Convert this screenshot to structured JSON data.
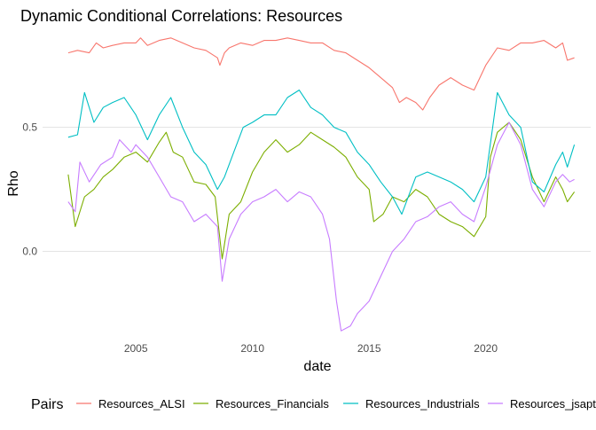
{
  "chart_data": {
    "type": "line",
    "title": "Dynamic Conditional Correlations: Resources",
    "xlabel": "date",
    "ylabel": "Rho",
    "x_ticks": [
      2005,
      2010,
      2015,
      2020
    ],
    "y_ticks": [
      {
        "value": 0.0,
        "label": "0.0"
      },
      {
        "value": 0.5,
        "label": "0.5"
      }
    ],
    "xlim": [
      2001.0,
      2024.5
    ],
    "ylim": [
      -0.33,
      0.87
    ],
    "grid": true,
    "legend": {
      "title": "Pairs",
      "position": "bottom"
    },
    "series": [
      {
        "name": "Resources_ALSI",
        "color": "#F8766D",
        "points": [
          [
            2002.1,
            0.8
          ],
          [
            2002.5,
            0.81
          ],
          [
            2003.0,
            0.8
          ],
          [
            2003.3,
            0.84
          ],
          [
            2003.6,
            0.82
          ],
          [
            2004.0,
            0.83
          ],
          [
            2004.5,
            0.84
          ],
          [
            2005.0,
            0.84
          ],
          [
            2005.2,
            0.86
          ],
          [
            2005.5,
            0.83
          ],
          [
            2006.0,
            0.85
          ],
          [
            2006.5,
            0.86
          ],
          [
            2007.0,
            0.84
          ],
          [
            2007.5,
            0.82
          ],
          [
            2008.0,
            0.81
          ],
          [
            2008.5,
            0.78
          ],
          [
            2008.6,
            0.75
          ],
          [
            2008.8,
            0.8
          ],
          [
            2009.0,
            0.82
          ],
          [
            2009.5,
            0.84
          ],
          [
            2010.0,
            0.83
          ],
          [
            2010.5,
            0.85
          ],
          [
            2011.0,
            0.85
          ],
          [
            2011.5,
            0.86
          ],
          [
            2012.0,
            0.85
          ],
          [
            2012.5,
            0.84
          ],
          [
            2013.0,
            0.84
          ],
          [
            2013.5,
            0.81
          ],
          [
            2014.0,
            0.8
          ],
          [
            2014.5,
            0.77
          ],
          [
            2015.0,
            0.74
          ],
          [
            2015.5,
            0.7
          ],
          [
            2016.0,
            0.66
          ],
          [
            2016.3,
            0.6
          ],
          [
            2016.6,
            0.62
          ],
          [
            2017.0,
            0.6
          ],
          [
            2017.3,
            0.57
          ],
          [
            2017.6,
            0.62
          ],
          [
            2018.0,
            0.67
          ],
          [
            2018.5,
            0.7
          ],
          [
            2019.0,
            0.67
          ],
          [
            2019.5,
            0.65
          ],
          [
            2020.0,
            0.75
          ],
          [
            2020.5,
            0.82
          ],
          [
            2021.0,
            0.81
          ],
          [
            2021.5,
            0.84
          ],
          [
            2022.0,
            0.84
          ],
          [
            2022.5,
            0.85
          ],
          [
            2023.0,
            0.82
          ],
          [
            2023.3,
            0.84
          ],
          [
            2023.5,
            0.77
          ],
          [
            2023.8,
            0.78
          ]
        ]
      },
      {
        "name": "Resources_Financials",
        "color": "#7CAE00",
        "points": [
          [
            2002.1,
            0.31
          ],
          [
            2002.4,
            0.1
          ],
          [
            2002.8,
            0.22
          ],
          [
            2003.2,
            0.25
          ],
          [
            2003.6,
            0.3
          ],
          [
            2004.0,
            0.33
          ],
          [
            2004.5,
            0.38
          ],
          [
            2005.0,
            0.4
          ],
          [
            2005.5,
            0.36
          ],
          [
            2006.0,
            0.44
          ],
          [
            2006.3,
            0.48
          ],
          [
            2006.6,
            0.4
          ],
          [
            2007.0,
            0.38
          ],
          [
            2007.5,
            0.28
          ],
          [
            2008.0,
            0.27
          ],
          [
            2008.4,
            0.22
          ],
          [
            2008.7,
            -0.03
          ],
          [
            2009.0,
            0.15
          ],
          [
            2009.5,
            0.2
          ],
          [
            2010.0,
            0.32
          ],
          [
            2010.5,
            0.4
          ],
          [
            2011.0,
            0.45
          ],
          [
            2011.5,
            0.4
          ],
          [
            2012.0,
            0.43
          ],
          [
            2012.5,
            0.48
          ],
          [
            2013.0,
            0.45
          ],
          [
            2013.5,
            0.42
          ],
          [
            2014.0,
            0.38
          ],
          [
            2014.5,
            0.3
          ],
          [
            2015.0,
            0.25
          ],
          [
            2015.2,
            0.12
          ],
          [
            2015.6,
            0.15
          ],
          [
            2016.0,
            0.22
          ],
          [
            2016.5,
            0.2
          ],
          [
            2017.0,
            0.25
          ],
          [
            2017.5,
            0.22
          ],
          [
            2018.0,
            0.15
          ],
          [
            2018.5,
            0.12
          ],
          [
            2019.0,
            0.1
          ],
          [
            2019.5,
            0.06
          ],
          [
            2020.0,
            0.14
          ],
          [
            2020.2,
            0.38
          ],
          [
            2020.5,
            0.48
          ],
          [
            2021.0,
            0.52
          ],
          [
            2021.5,
            0.45
          ],
          [
            2022.0,
            0.3
          ],
          [
            2022.5,
            0.2
          ],
          [
            2023.0,
            0.3
          ],
          [
            2023.3,
            0.25
          ],
          [
            2023.5,
            0.2
          ],
          [
            2023.8,
            0.24
          ]
        ]
      },
      {
        "name": "Resources_Industrials",
        "color": "#00BFC4",
        "points": [
          [
            2002.1,
            0.46
          ],
          [
            2002.5,
            0.47
          ],
          [
            2002.8,
            0.64
          ],
          [
            2003.2,
            0.52
          ],
          [
            2003.6,
            0.58
          ],
          [
            2004.0,
            0.6
          ],
          [
            2004.5,
            0.62
          ],
          [
            2005.0,
            0.55
          ],
          [
            2005.5,
            0.45
          ],
          [
            2006.0,
            0.55
          ],
          [
            2006.5,
            0.62
          ],
          [
            2007.0,
            0.5
          ],
          [
            2007.5,
            0.4
          ],
          [
            2008.0,
            0.35
          ],
          [
            2008.5,
            0.25
          ],
          [
            2008.8,
            0.3
          ],
          [
            2009.2,
            0.4
          ],
          [
            2009.6,
            0.5
          ],
          [
            2010.0,
            0.52
          ],
          [
            2010.5,
            0.55
          ],
          [
            2011.0,
            0.55
          ],
          [
            2011.5,
            0.62
          ],
          [
            2012.0,
            0.65
          ],
          [
            2012.5,
            0.58
          ],
          [
            2013.0,
            0.55
          ],
          [
            2013.5,
            0.5
          ],
          [
            2014.0,
            0.48
          ],
          [
            2014.5,
            0.4
          ],
          [
            2015.0,
            0.35
          ],
          [
            2015.5,
            0.28
          ],
          [
            2016.0,
            0.22
          ],
          [
            2016.4,
            0.15
          ],
          [
            2016.8,
            0.25
          ],
          [
            2017.0,
            0.3
          ],
          [
            2017.5,
            0.32
          ],
          [
            2018.0,
            0.3
          ],
          [
            2018.5,
            0.28
          ],
          [
            2019.0,
            0.25
          ],
          [
            2019.5,
            0.2
          ],
          [
            2020.0,
            0.3
          ],
          [
            2020.3,
            0.5
          ],
          [
            2020.5,
            0.64
          ],
          [
            2021.0,
            0.55
          ],
          [
            2021.5,
            0.5
          ],
          [
            2022.0,
            0.28
          ],
          [
            2022.5,
            0.24
          ],
          [
            2023.0,
            0.35
          ],
          [
            2023.3,
            0.4
          ],
          [
            2023.5,
            0.34
          ],
          [
            2023.8,
            0.43
          ]
        ]
      },
      {
        "name": "Resources_jsapty",
        "color": "#C77CFF",
        "points": [
          [
            2002.1,
            0.2
          ],
          [
            2002.4,
            0.16
          ],
          [
            2002.6,
            0.36
          ],
          [
            2003.0,
            0.28
          ],
          [
            2003.5,
            0.35
          ],
          [
            2004.0,
            0.38
          ],
          [
            2004.3,
            0.45
          ],
          [
            2004.8,
            0.4
          ],
          [
            2005.0,
            0.43
          ],
          [
            2005.5,
            0.38
          ],
          [
            2006.0,
            0.3
          ],
          [
            2006.5,
            0.22
          ],
          [
            2007.0,
            0.2
          ],
          [
            2007.5,
            0.12
          ],
          [
            2008.0,
            0.15
          ],
          [
            2008.5,
            0.1
          ],
          [
            2008.7,
            -0.12
          ],
          [
            2009.0,
            0.05
          ],
          [
            2009.5,
            0.15
          ],
          [
            2010.0,
            0.2
          ],
          [
            2010.5,
            0.22
          ],
          [
            2011.0,
            0.25
          ],
          [
            2011.5,
            0.2
          ],
          [
            2012.0,
            0.24
          ],
          [
            2012.5,
            0.22
          ],
          [
            2013.0,
            0.15
          ],
          [
            2013.3,
            0.05
          ],
          [
            2013.6,
            -0.2
          ],
          [
            2013.8,
            -0.32
          ],
          [
            2014.2,
            -0.3
          ],
          [
            2014.5,
            -0.25
          ],
          [
            2015.0,
            -0.2
          ],
          [
            2015.5,
            -0.1
          ],
          [
            2016.0,
            0.0
          ],
          [
            2016.5,
            0.05
          ],
          [
            2017.0,
            0.12
          ],
          [
            2017.5,
            0.14
          ],
          [
            2018.0,
            0.18
          ],
          [
            2018.5,
            0.2
          ],
          [
            2019.0,
            0.15
          ],
          [
            2019.5,
            0.12
          ],
          [
            2020.0,
            0.26
          ],
          [
            2020.5,
            0.43
          ],
          [
            2021.0,
            0.52
          ],
          [
            2021.5,
            0.43
          ],
          [
            2022.0,
            0.25
          ],
          [
            2022.5,
            0.18
          ],
          [
            2023.0,
            0.28
          ],
          [
            2023.3,
            0.31
          ],
          [
            2023.6,
            0.28
          ],
          [
            2023.8,
            0.29
          ]
        ]
      }
    ]
  }
}
